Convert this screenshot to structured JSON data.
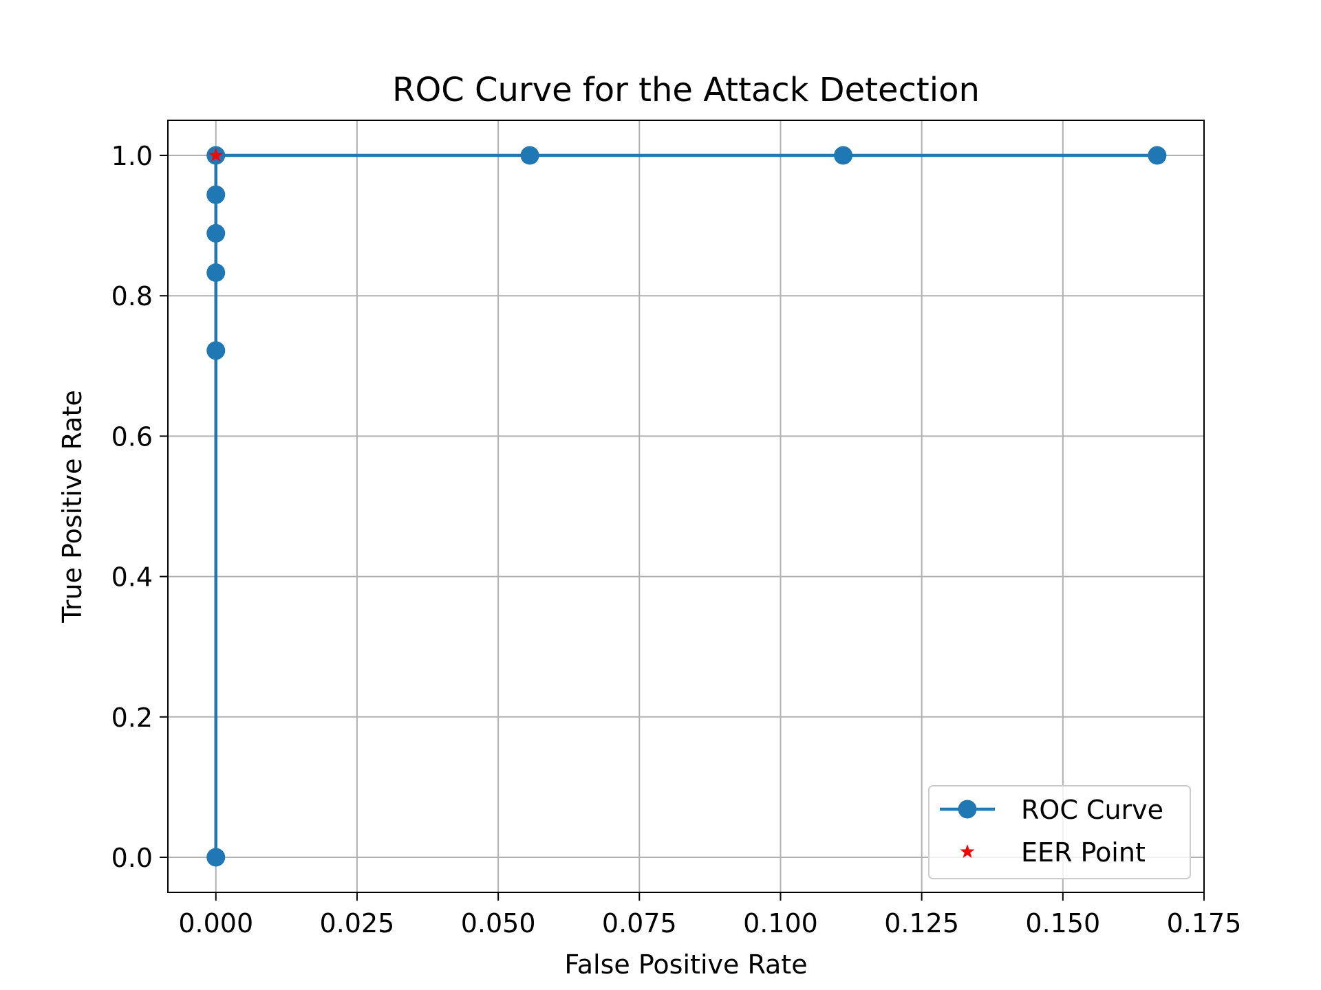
{
  "chart_data": {
    "type": "line",
    "title": "ROC Curve for the Attack Detection",
    "xlabel": "False Positive Rate",
    "ylabel": "True Positive Rate",
    "xlim": [
      -0.0085,
      0.175
    ],
    "ylim": [
      -0.05,
      1.05
    ],
    "x_ticks": [
      0.0,
      0.025,
      0.05,
      0.075,
      0.1,
      0.125,
      0.15,
      0.175
    ],
    "x_tick_labels": [
      "0.000",
      "0.025",
      "0.050",
      "0.075",
      "0.100",
      "0.125",
      "0.150",
      "0.175"
    ],
    "y_ticks": [
      0.0,
      0.2,
      0.4,
      0.6,
      0.8,
      1.0
    ],
    "y_tick_labels": [
      "0.0",
      "0.2",
      "0.4",
      "0.6",
      "0.8",
      "1.0"
    ],
    "grid": true,
    "legend_position": "lower-right",
    "series": [
      {
        "name": "ROC Curve",
        "color": "#1f77b4",
        "marker": "circle",
        "x": [
          0.0,
          0.0,
          0.0,
          0.0,
          0.0,
          0.0,
          0.0556,
          0.1111,
          0.1667
        ],
        "y": [
          0.0,
          0.722,
          0.833,
          0.889,
          0.944,
          1.0,
          1.0,
          1.0,
          1.0
        ]
      },
      {
        "name": "EER Point",
        "color": "#ff0000",
        "marker": "star",
        "x": [
          0.0
        ],
        "y": [
          1.0
        ]
      }
    ]
  }
}
